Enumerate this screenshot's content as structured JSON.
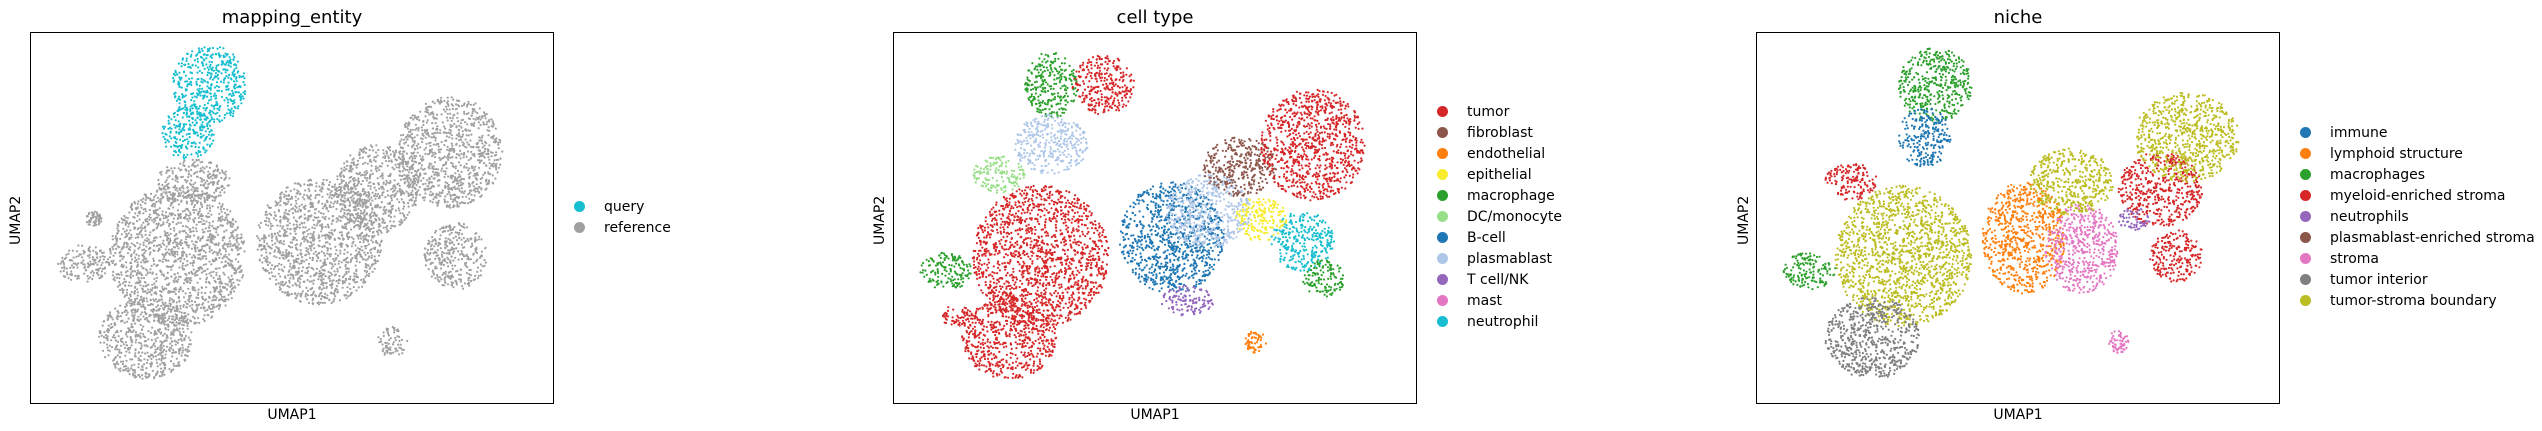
{
  "chart_data": [
    {
      "type": "scatter",
      "title": "mapping_entity",
      "xlabel": "UMAP1",
      "ylabel": "UMAP2",
      "grid": false,
      "legend_position": "right",
      "legend": [
        {
          "label": "query",
          "color": "#17becf"
        },
        {
          "label": "reference",
          "color": "#a0a0a0"
        }
      ],
      "clusters": [
        {
          "cx": 0.28,
          "cy": 0.6,
          "rx": 0.13,
          "ry": 0.19,
          "color": "#a0a0a0"
        },
        {
          "cx": 0.22,
          "cy": 0.82,
          "rx": 0.09,
          "ry": 0.11,
          "color": "#a0a0a0"
        },
        {
          "cx": 0.34,
          "cy": 0.14,
          "rx": 0.07,
          "ry": 0.11,
          "color": "#17becf"
        },
        {
          "cx": 0.3,
          "cy": 0.27,
          "rx": 0.05,
          "ry": 0.07,
          "color": "#17becf"
        },
        {
          "cx": 0.31,
          "cy": 0.4,
          "rx": 0.07,
          "ry": 0.06,
          "color": "#a0a0a0"
        },
        {
          "cx": 0.55,
          "cy": 0.56,
          "rx": 0.12,
          "ry": 0.17,
          "color": "#a0a0a0"
        },
        {
          "cx": 0.66,
          "cy": 0.42,
          "rx": 0.08,
          "ry": 0.12,
          "color": "#a0a0a0"
        },
        {
          "cx": 0.8,
          "cy": 0.32,
          "rx": 0.1,
          "ry": 0.15,
          "color": "#a0a0a0"
        },
        {
          "cx": 0.81,
          "cy": 0.6,
          "rx": 0.06,
          "ry": 0.09,
          "color": "#a0a0a0"
        },
        {
          "cx": 0.1,
          "cy": 0.62,
          "rx": 0.05,
          "ry": 0.05,
          "color": "#a0a0a0"
        },
        {
          "cx": 0.69,
          "cy": 0.83,
          "rx": 0.03,
          "ry": 0.04,
          "color": "#a0a0a0"
        },
        {
          "cx": 0.12,
          "cy": 0.5,
          "rx": 0.015,
          "ry": 0.02,
          "color": "#a0a0a0"
        }
      ]
    },
    {
      "type": "scatter",
      "title": "cell type",
      "xlabel": "UMAP1",
      "ylabel": "UMAP2",
      "grid": false,
      "legend_position": "right",
      "legend": [
        {
          "label": "tumor",
          "color": "#d62728"
        },
        {
          "label": "fibroblast",
          "color": "#8c564b"
        },
        {
          "label": "endothelial",
          "color": "#ff7f0e"
        },
        {
          "label": "epithelial",
          "color": "#f7ec2e"
        },
        {
          "label": "macrophage",
          "color": "#2ca02c"
        },
        {
          "label": "DC/monocyte",
          "color": "#98df8a"
        },
        {
          "label": "B-cell",
          "color": "#1f77b4"
        },
        {
          "label": "plasmablast",
          "color": "#aec7e8"
        },
        {
          "label": "T cell/NK",
          "color": "#9467bd"
        },
        {
          "label": "mast",
          "color": "#e377c2"
        },
        {
          "label": "neutrophil",
          "color": "#17becf"
        }
      ],
      "clusters": [
        {
          "cx": 0.28,
          "cy": 0.6,
          "rx": 0.13,
          "ry": 0.19,
          "color": "#d62728"
        },
        {
          "cx": 0.22,
          "cy": 0.82,
          "rx": 0.09,
          "ry": 0.11,
          "color": "#d62728"
        },
        {
          "cx": 0.4,
          "cy": 0.14,
          "rx": 0.06,
          "ry": 0.08,
          "color": "#d62728"
        },
        {
          "cx": 0.3,
          "cy": 0.14,
          "rx": 0.05,
          "ry": 0.09,
          "color": "#2ca02c"
        },
        {
          "cx": 0.3,
          "cy": 0.3,
          "rx": 0.07,
          "ry": 0.08,
          "color": "#aec7e8"
        },
        {
          "cx": 0.2,
          "cy": 0.38,
          "rx": 0.05,
          "ry": 0.05,
          "color": "#98df8a"
        },
        {
          "cx": 0.53,
          "cy": 0.55,
          "rx": 0.1,
          "ry": 0.15,
          "color": "#1f77b4"
        },
        {
          "cx": 0.6,
          "cy": 0.48,
          "rx": 0.08,
          "ry": 0.1,
          "color": "#aec7e8"
        },
        {
          "cx": 0.66,
          "cy": 0.36,
          "rx": 0.07,
          "ry": 0.08,
          "color": "#8c564b"
        },
        {
          "cx": 0.8,
          "cy": 0.3,
          "rx": 0.1,
          "ry": 0.15,
          "color": "#d62728"
        },
        {
          "cx": 0.78,
          "cy": 0.56,
          "rx": 0.06,
          "ry": 0.08,
          "color": "#17becf"
        },
        {
          "cx": 0.82,
          "cy": 0.66,
          "rx": 0.04,
          "ry": 0.05,
          "color": "#2ca02c"
        },
        {
          "cx": 0.7,
          "cy": 0.5,
          "rx": 0.05,
          "ry": 0.06,
          "color": "#f7ec2e"
        },
        {
          "cx": 0.1,
          "cy": 0.64,
          "rx": 0.05,
          "ry": 0.05,
          "color": "#2ca02c"
        },
        {
          "cx": 0.12,
          "cy": 0.76,
          "rx": 0.03,
          "ry": 0.03,
          "color": "#d62728"
        },
        {
          "cx": 0.69,
          "cy": 0.83,
          "rx": 0.02,
          "ry": 0.03,
          "color": "#ff7f0e"
        },
        {
          "cx": 0.56,
          "cy": 0.72,
          "rx": 0.05,
          "ry": 0.04,
          "color": "#9467bd"
        }
      ]
    },
    {
      "type": "scatter",
      "title": "niche",
      "xlabel": "UMAP1",
      "ylabel": "UMAP2",
      "grid": false,
      "legend_position": "right",
      "legend": [
        {
          "label": "immune",
          "color": "#1f77b4"
        },
        {
          "label": "lymphoid structure",
          "color": "#ff7f0e"
        },
        {
          "label": "macrophages",
          "color": "#2ca02c"
        },
        {
          "label": "myeloid-enriched stroma",
          "color": "#d62728"
        },
        {
          "label": "neutrophils",
          "color": "#9467bd"
        },
        {
          "label": "plasmablast-enriched stroma",
          "color": "#8c564b"
        },
        {
          "label": "stroma",
          "color": "#e377c2"
        },
        {
          "label": "tumor interior",
          "color": "#7f7f7f"
        },
        {
          "label": "tumor-stroma boundary",
          "color": "#bcbd22"
        }
      ],
      "clusters": [
        {
          "cx": 0.28,
          "cy": 0.6,
          "rx": 0.13,
          "ry": 0.19,
          "color": "#bcbd22"
        },
        {
          "cx": 0.22,
          "cy": 0.82,
          "rx": 0.09,
          "ry": 0.11,
          "color": "#7f7f7f"
        },
        {
          "cx": 0.34,
          "cy": 0.14,
          "rx": 0.07,
          "ry": 0.1,
          "color": "#2ca02c"
        },
        {
          "cx": 0.32,
          "cy": 0.28,
          "rx": 0.05,
          "ry": 0.08,
          "color": "#1f77b4"
        },
        {
          "cx": 0.18,
          "cy": 0.4,
          "rx": 0.05,
          "ry": 0.05,
          "color": "#d62728"
        },
        {
          "cx": 0.51,
          "cy": 0.55,
          "rx": 0.08,
          "ry": 0.15,
          "color": "#ff7f0e"
        },
        {
          "cx": 0.62,
          "cy": 0.58,
          "rx": 0.07,
          "ry": 0.12,
          "color": "#e377c2"
        },
        {
          "cx": 0.6,
          "cy": 0.4,
          "rx": 0.08,
          "ry": 0.09,
          "color": "#bcbd22"
        },
        {
          "cx": 0.77,
          "cy": 0.42,
          "rx": 0.08,
          "ry": 0.1,
          "color": "#d62728"
        },
        {
          "cx": 0.82,
          "cy": 0.28,
          "rx": 0.1,
          "ry": 0.12,
          "color": "#bcbd22"
        },
        {
          "cx": 0.8,
          "cy": 0.6,
          "rx": 0.05,
          "ry": 0.07,
          "color": "#d62728"
        },
        {
          "cx": 0.1,
          "cy": 0.64,
          "rx": 0.05,
          "ry": 0.05,
          "color": "#2ca02c"
        },
        {
          "cx": 0.69,
          "cy": 0.83,
          "rx": 0.02,
          "ry": 0.03,
          "color": "#e377c2"
        },
        {
          "cx": 0.72,
          "cy": 0.5,
          "rx": 0.03,
          "ry": 0.03,
          "color": "#9467bd"
        }
      ]
    }
  ]
}
